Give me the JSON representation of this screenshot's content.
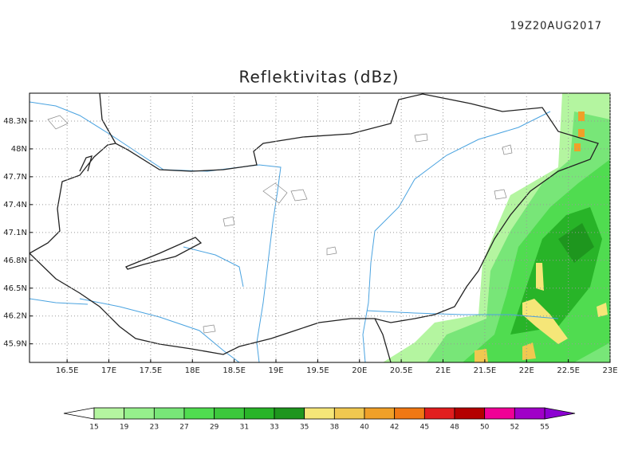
{
  "timestamp": "19Z20AUG2017",
  "title": "Reflektivitas (dBz)",
  "map": {
    "xlim": [
      16.05,
      23.0
    ],
    "ylim": [
      45.7,
      48.6
    ],
    "xticks": [
      {
        "value": 16.5,
        "label": "16.5E"
      },
      {
        "value": 17,
        "label": "17E"
      },
      {
        "value": 17.5,
        "label": "17.5E"
      },
      {
        "value": 18,
        "label": "18E"
      },
      {
        "value": 18.5,
        "label": "18.5E"
      },
      {
        "value": 19,
        "label": "19E"
      },
      {
        "value": 19.5,
        "label": "19.5E"
      },
      {
        "value": 20,
        "label": "20E"
      },
      {
        "value": 20.5,
        "label": "20.5E"
      },
      {
        "value": 21,
        "label": "21E"
      },
      {
        "value": 21.5,
        "label": "21.5E"
      },
      {
        "value": 22,
        "label": "22E"
      },
      {
        "value": 22.5,
        "label": "22.5E"
      },
      {
        "value": 23,
        "label": "23E"
      }
    ],
    "yticks": [
      {
        "value": 48.3,
        "label": "48.3N"
      },
      {
        "value": 48,
        "label": "48N"
      },
      {
        "value": 47.7,
        "label": "47.7N"
      },
      {
        "value": 47.4,
        "label": "47.4N"
      },
      {
        "value": 47.1,
        "label": "47.1N"
      },
      {
        "value": 46.8,
        "label": "46.8N"
      },
      {
        "value": 46.5,
        "label": "46.5N"
      },
      {
        "value": 46.2,
        "label": "46.2N"
      },
      {
        "value": 45.9,
        "label": "45.9N"
      }
    ],
    "grid": true
  },
  "colorbar": {
    "levels": [
      15,
      19,
      23,
      27,
      29,
      31,
      33,
      35,
      38,
      40,
      42,
      45,
      48,
      50,
      52,
      55
    ],
    "colors": [
      "#b4f5a0",
      "#96f08c",
      "#78e678",
      "#50dc50",
      "#3cc83c",
      "#28b428",
      "#1e961e",
      "#f5e678",
      "#f0c850",
      "#f0a028",
      "#f07814",
      "#e11e1e",
      "#b40000",
      "#f00096",
      "#a000c8"
    ],
    "under_color": "#ffffff",
    "over_color": "#8c00d2"
  }
}
